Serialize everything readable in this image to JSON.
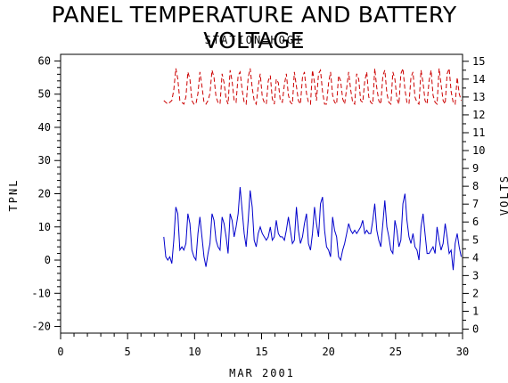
{
  "chart_data": {
    "type": "line",
    "title": "PANEL TEMPERATURE AND BATTERY VOLTAGE",
    "subtitle": "STATION=HOGI",
    "xlabel": "MAR 2001",
    "ylabel": "TPNL",
    "y2label": "VOLTS",
    "xlim": [
      0,
      30
    ],
    "ylim": [
      -22,
      62
    ],
    "y2lim": [
      0,
      15
    ],
    "xticks": [
      "0",
      "5",
      "10",
      "15",
      "20",
      "25",
      "30"
    ],
    "yticks": [
      "-20",
      "-10",
      "0",
      "10",
      "20",
      "30",
      "40",
      "50",
      "60"
    ],
    "y2ticks": [
      "0",
      "1",
      "2",
      "3",
      "4",
      "5",
      "6",
      "7",
      "8",
      "9",
      "10",
      "11",
      "12",
      "13",
      "14",
      "15"
    ],
    "grid": false,
    "series": [
      {
        "name": "TPNL",
        "axis": "left",
        "color": "#0000cc",
        "style": "solid",
        "x": [
          7.7,
          7.85,
          8.0,
          8.15,
          8.3,
          8.45,
          8.6,
          8.75,
          8.9,
          9.05,
          9.2,
          9.35,
          9.5,
          9.65,
          9.8,
          9.95,
          10.1,
          10.25,
          10.4,
          10.55,
          10.7,
          10.85,
          11.0,
          11.15,
          11.3,
          11.45,
          11.6,
          11.75,
          11.9,
          12.05,
          12.2,
          12.35,
          12.5,
          12.65,
          12.8,
          12.95,
          13.1,
          13.25,
          13.4,
          13.55,
          13.7,
          13.85,
          14.0,
          14.15,
          14.3,
          14.45,
          14.6,
          14.75,
          14.9,
          15.05,
          15.2,
          15.35,
          15.5,
          15.65,
          15.8,
          15.95,
          16.1,
          16.25,
          16.4,
          16.55,
          16.7,
          16.85,
          17.0,
          17.15,
          17.3,
          17.45,
          17.6,
          17.75,
          17.9,
          18.05,
          18.2,
          18.35,
          18.5,
          18.65,
          18.8,
          18.95,
          19.1,
          19.25,
          19.4,
          19.55,
          19.7,
          19.85,
          20.0,
          20.15,
          20.3,
          20.45,
          20.6,
          20.75,
          20.9,
          21.05,
          21.2,
          21.35,
          21.5,
          21.65,
          21.8,
          21.95,
          22.1,
          22.25,
          22.4,
          22.55,
          22.7,
          22.85,
          23.0,
          23.15,
          23.3,
          23.45,
          23.6,
          23.75,
          23.9,
          24.05,
          24.2,
          24.35,
          24.5,
          24.65,
          24.8,
          24.95,
          25.1,
          25.25,
          25.4,
          25.55,
          25.7,
          25.85,
          26.0,
          26.15,
          26.3,
          26.45,
          26.6,
          26.75,
          26.9,
          27.05,
          27.2,
          27.35,
          27.5,
          27.65,
          27.8,
          27.95,
          28.1,
          28.25,
          28.4,
          28.55,
          28.7,
          28.85,
          29.0,
          29.15,
          29.3,
          29.45,
          29.6,
          29.75,
          29.9
        ],
        "values": [
          7,
          1,
          0,
          1,
          -1,
          6,
          16,
          14,
          3,
          4,
          3,
          5,
          14,
          11,
          3,
          1,
          0,
          8,
          13,
          7,
          1,
          -2,
          2,
          5,
          14,
          12,
          6,
          4,
          3,
          13,
          11,
          7,
          2,
          14,
          12,
          7,
          10,
          14,
          22,
          15,
          8,
          4,
          12,
          21,
          16,
          6,
          4,
          8,
          10,
          8,
          7,
          6,
          7,
          10,
          6,
          7,
          12,
          8,
          7,
          7,
          6,
          9,
          13,
          9,
          5,
          6,
          16,
          9,
          5,
          7,
          11,
          14,
          5,
          3,
          8,
          16,
          11,
          7,
          17,
          19,
          9,
          4,
          3,
          1,
          13,
          9,
          7,
          1,
          0,
          3,
          5,
          8,
          11,
          9,
          8,
          9,
          8,
          9,
          10,
          12,
          8,
          9,
          8,
          8,
          12,
          17,
          9,
          6,
          4,
          11,
          18,
          10,
          7,
          3,
          2,
          12,
          9,
          4,
          6,
          17,
          20,
          12,
          7,
          5,
          8,
          4,
          3,
          0,
          10,
          14,
          8,
          2,
          2,
          3,
          4,
          2,
          10,
          6,
          3,
          5,
          11,
          7,
          2,
          3,
          -3,
          5,
          8,
          4,
          1
        ]
      },
      {
        "name": "VOLTS",
        "axis": "right",
        "color": "#cc0000",
        "style": "dashed",
        "x": [
          7.7,
          7.85,
          8.0,
          8.15,
          8.3,
          8.45,
          8.6,
          8.75,
          8.9,
          9.05,
          9.2,
          9.35,
          9.5,
          9.65,
          9.8,
          9.95,
          10.1,
          10.25,
          10.4,
          10.55,
          10.7,
          10.85,
          11.0,
          11.15,
          11.3,
          11.45,
          11.6,
          11.75,
          11.9,
          12.05,
          12.2,
          12.35,
          12.5,
          12.65,
          12.8,
          12.95,
          13.1,
          13.25,
          13.4,
          13.55,
          13.7,
          13.85,
          14.0,
          14.15,
          14.3,
          14.45,
          14.6,
          14.75,
          14.9,
          15.05,
          15.2,
          15.35,
          15.5,
          15.65,
          15.8,
          15.95,
          16.1,
          16.25,
          16.4,
          16.55,
          16.7,
          16.85,
          17.0,
          17.15,
          17.3,
          17.45,
          17.6,
          17.75,
          17.9,
          18.05,
          18.2,
          18.35,
          18.5,
          18.65,
          18.8,
          18.95,
          19.1,
          19.25,
          19.4,
          19.55,
          19.7,
          19.85,
          20.0,
          20.15,
          20.3,
          20.45,
          20.6,
          20.75,
          20.9,
          21.05,
          21.2,
          21.35,
          21.5,
          21.65,
          21.8,
          21.95,
          22.1,
          22.25,
          22.4,
          22.55,
          22.7,
          22.85,
          23.0,
          23.15,
          23.3,
          23.45,
          23.6,
          23.75,
          23.9,
          24.05,
          24.2,
          24.35,
          24.5,
          24.65,
          24.8,
          24.95,
          25.1,
          25.25,
          25.4,
          25.55,
          25.7,
          25.85,
          26.0,
          26.15,
          26.3,
          26.45,
          26.6,
          26.75,
          26.9,
          27.05,
          27.2,
          27.35,
          27.5,
          27.65,
          27.8,
          27.95,
          28.1,
          28.25,
          28.4,
          28.55,
          28.7,
          28.85,
          29.0,
          29.15,
          29.3,
          29.45,
          29.6,
          29.75,
          29.9
        ],
        "values": [
          12.8,
          12.7,
          12.6,
          12.7,
          12.8,
          13.4,
          14.6,
          14.0,
          12.8,
          12.7,
          12.6,
          13.0,
          14.4,
          14.0,
          12.8,
          12.6,
          12.6,
          13.2,
          14.4,
          13.6,
          12.7,
          12.6,
          12.8,
          13.2,
          14.5,
          14.1,
          13.0,
          12.7,
          12.6,
          14.3,
          13.8,
          12.9,
          12.6,
          14.5,
          13.9,
          12.8,
          12.7,
          14.2,
          14.4,
          13.4,
          12.7,
          12.6,
          14.1,
          14.6,
          13.5,
          12.8,
          12.6,
          13.6,
          14.3,
          13.0,
          12.7,
          12.6,
          13.9,
          14.2,
          12.9,
          12.6,
          14.0,
          13.8,
          12.8,
          12.7,
          13.7,
          14.3,
          13.1,
          12.7,
          12.6,
          14.4,
          13.6,
          12.8,
          12.6,
          14.1,
          14.4,
          13.2,
          12.7,
          12.6,
          14.5,
          13.8,
          12.8,
          14.3,
          14.5,
          13.3,
          12.6,
          12.6,
          13.8,
          14.4,
          13.1,
          12.7,
          12.6,
          14.2,
          13.9,
          12.9,
          12.6,
          13.5,
          14.4,
          13.4,
          12.7,
          12.6,
          14.3,
          14.0,
          12.8,
          12.7,
          13.9,
          14.4,
          13.0,
          12.7,
          12.6,
          14.6,
          13.5,
          12.8,
          12.6,
          14.2,
          14.5,
          13.2,
          12.7,
          12.6,
          14.4,
          14.0,
          12.9,
          12.6,
          14.3,
          14.6,
          13.4,
          12.7,
          12.6,
          14.1,
          14.4,
          13.0,
          12.7,
          12.6,
          14.5,
          13.8,
          12.8,
          12.6,
          13.9,
          14.5,
          13.1,
          12.7,
          12.6,
          14.6,
          13.7,
          12.8,
          12.6,
          14.3,
          14.6,
          13.3,
          12.7,
          12.6,
          14.1,
          13.2,
          12.8
        ]
      }
    ]
  }
}
